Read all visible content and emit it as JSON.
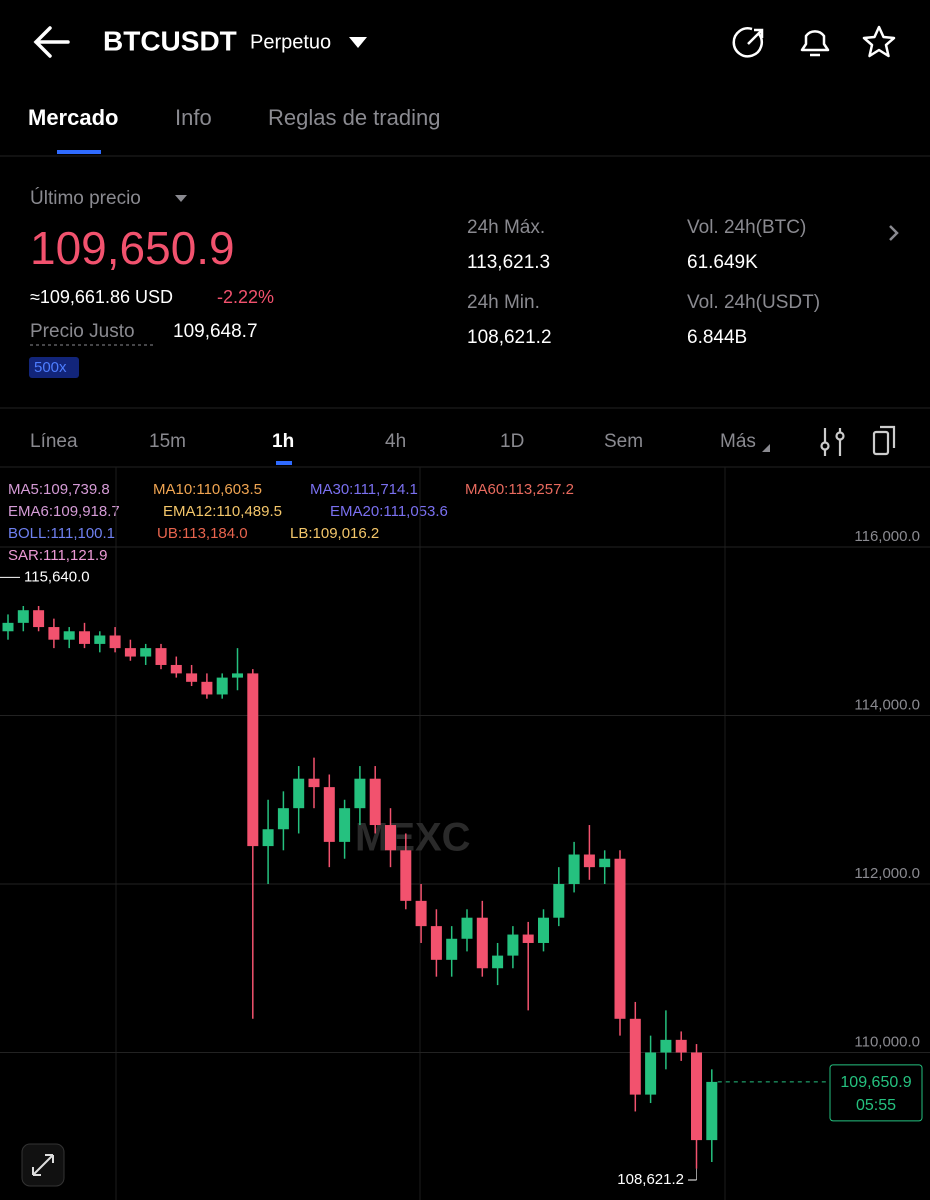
{
  "header": {
    "title": "BTCUSDT",
    "subtitle": "Perpetuo"
  },
  "tabs": [
    "Mercado",
    "Info",
    "Reglas de trading"
  ],
  "price": {
    "label": "Último precio",
    "last": "109,650.9",
    "usd": "≈109,661.86 USD",
    "change": "-2.22%",
    "fair_label": "Precio Justo",
    "fair": "109,648.7",
    "leverage": "500x"
  },
  "stats": [
    {
      "label": "24h Máx.",
      "value": "113,621.3"
    },
    {
      "label": "Vol. 24h(BTC)",
      "value": "61.649K"
    },
    {
      "label": "24h Min.",
      "value": "108,621.2"
    },
    {
      "label": "Vol. 24h(USDT)",
      "value": "6.844B"
    }
  ],
  "intervals": [
    "Línea",
    "15m",
    "1h",
    "4h",
    "1D",
    "Sem",
    "Más"
  ],
  "indicators": [
    [
      "MA5:109,739.8",
      "MA10:110,603.5",
      "MA30:111,714.1",
      "MA60:113,257.2"
    ],
    [
      "EMA6:109,918.7",
      "EMA12:110,489.5",
      "EMA20:111,053.6"
    ],
    [
      "BOLL:111,100.1",
      "UB:113,184.0",
      "LB:109,016.2"
    ],
    [
      "SAR:111,121.9"
    ]
  ],
  "chart": {
    "ylim": [
      108249,
      116950
    ],
    "yticks": [
      {
        "value": 116000,
        "label": "116,000.0"
      },
      {
        "value": 114000,
        "label": "114,000.0"
      },
      {
        "value": 112000,
        "label": "112,000.0"
      },
      {
        "value": 110000,
        "label": "110,000.0"
      }
    ],
    "up_color": "#25c17f",
    "down_color": "#f2526e",
    "last_label": "109,650.9",
    "countdown": "05:55",
    "high_marker": {
      "value": 115640,
      "label": "115,640.0"
    },
    "low_marker": {
      "value": 108621.2,
      "label": "108,621.2"
    },
    "candles": [
      [
        115000,
        115200,
        114900,
        115100
      ],
      [
        115100,
        115300,
        115000,
        115250
      ],
      [
        115250,
        115300,
        115000,
        115050
      ],
      [
        115050,
        115150,
        114800,
        114900
      ],
      [
        114900,
        115050,
        114800,
        115000
      ],
      [
        115000,
        115100,
        114800,
        114850
      ],
      [
        114850,
        115000,
        114750,
        114950
      ],
      [
        114950,
        115050,
        114750,
        114800
      ],
      [
        114800,
        114900,
        114650,
        114700
      ],
      [
        114700,
        114850,
        114600,
        114800
      ],
      [
        114800,
        114850,
        114550,
        114600
      ],
      [
        114600,
        114700,
        114450,
        114500
      ],
      [
        114500,
        114600,
        114350,
        114400
      ],
      [
        114400,
        114500,
        114200,
        114250
      ],
      [
        114250,
        114500,
        114200,
        114450
      ],
      [
        114450,
        114800,
        114300,
        114500
      ],
      [
        114500,
        114550,
        110400,
        112450
      ],
      [
        112450,
        113000,
        112000,
        112650
      ],
      [
        112650,
        113100,
        112400,
        112900
      ],
      [
        112900,
        113400,
        112600,
        113250
      ],
      [
        113250,
        113500,
        112900,
        113150
      ],
      [
        113150,
        113300,
        112200,
        112500
      ],
      [
        112500,
        113000,
        112300,
        112900
      ],
      [
        112900,
        113400,
        112700,
        113250
      ],
      [
        113250,
        113400,
        112600,
        112700
      ],
      [
        112700,
        112900,
        112200,
        112400
      ],
      [
        112400,
        112600,
        111700,
        111800
      ],
      [
        111800,
        112000,
        111300,
        111500
      ],
      [
        111500,
        111700,
        110900,
        111100
      ],
      [
        111100,
        111500,
        110900,
        111350
      ],
      [
        111350,
        111700,
        111200,
        111600
      ],
      [
        111600,
        111800,
        110900,
        111000
      ],
      [
        111000,
        111300,
        110800,
        111150
      ],
      [
        111150,
        111500,
        111000,
        111400
      ],
      [
        111400,
        111550,
        110500,
        111300
      ],
      [
        111300,
        111700,
        111200,
        111600
      ],
      [
        111600,
        112200,
        111500,
        112000
      ],
      [
        112000,
        112500,
        111900,
        112350
      ],
      [
        112350,
        112700,
        112050,
        112200
      ],
      [
        112200,
        112400,
        112000,
        112300
      ],
      [
        112300,
        112400,
        110200,
        110400
      ],
      [
        110400,
        110600,
        109300,
        109500
      ],
      [
        109500,
        110200,
        109400,
        110000
      ],
      [
        110000,
        110500,
        109800,
        110150
      ],
      [
        110150,
        110250,
        109900,
        110000
      ],
      [
        110000,
        110100,
        108621.2,
        108960
      ],
      [
        108960,
        109800,
        108700,
        109650.9
      ]
    ]
  }
}
